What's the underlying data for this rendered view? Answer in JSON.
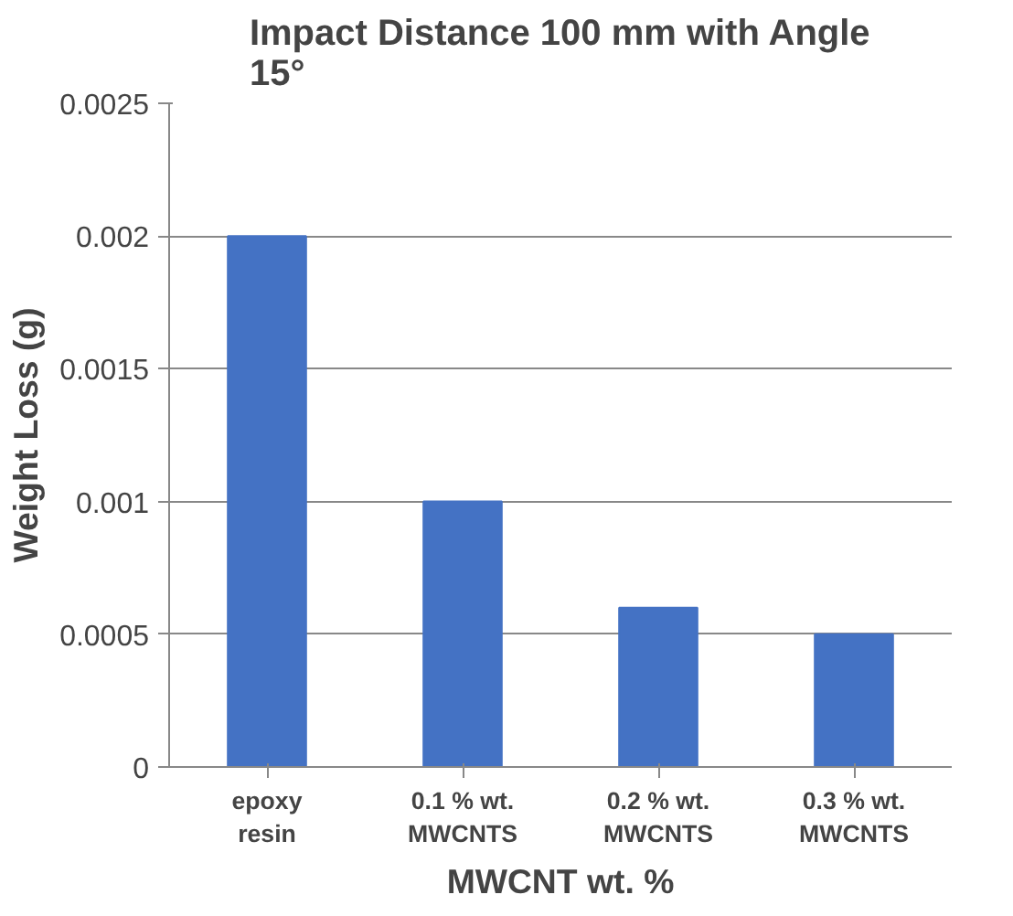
{
  "chart_data": {
    "type": "bar",
    "title": "Impact Distance 100 mm with Angle 15°",
    "xlabel": "MWCNT wt. %",
    "ylabel": "Weight Loss (g)",
    "categories": [
      "epoxy resin",
      "0.1 % wt. MWCNTS",
      "0.2 % wt. MWCNTS",
      "0.3 % wt. MWCNTS"
    ],
    "values": [
      0.002,
      0.001,
      0.0006,
      0.0005
    ],
    "color": "#4472c4",
    "ylim": [
      0,
      0.0025
    ],
    "yticks": [
      0,
      0.0005,
      0.001,
      0.0015,
      0.002,
      0.0025
    ],
    "grid": "y"
  }
}
